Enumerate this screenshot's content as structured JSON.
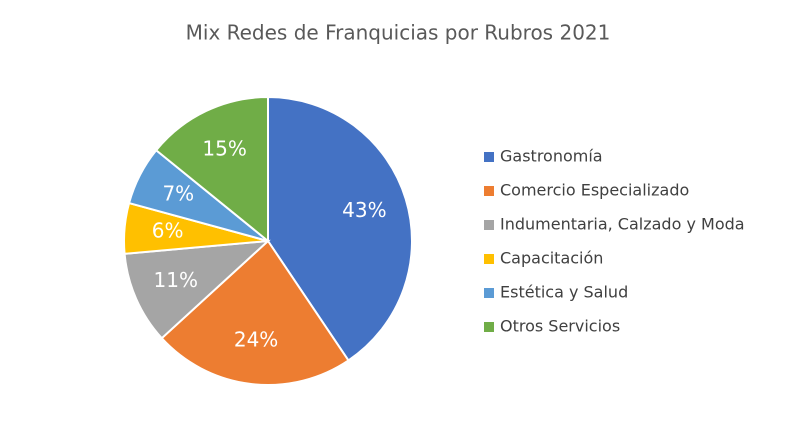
{
  "chart_data": {
    "type": "pie",
    "title": "Mix Redes de Franquicias por Rubros  2021",
    "categories": [
      "Gastronomía",
      "Comercio Especializado",
      "Indumentaria, Calzado y Moda",
      "Capacitación",
      "Estética y Salud",
      "Otros Servicios"
    ],
    "values": [
      43,
      24,
      11,
      6,
      7,
      15
    ],
    "value_labels": [
      "43%",
      "24%",
      "11%",
      "6%",
      "7%",
      "15%"
    ],
    "colors": [
      "#4472c4",
      "#ed7d31",
      "#a5a5a5",
      "#ffc000",
      "#5b9bd5",
      "#70ad47"
    ],
    "legend": "right"
  }
}
